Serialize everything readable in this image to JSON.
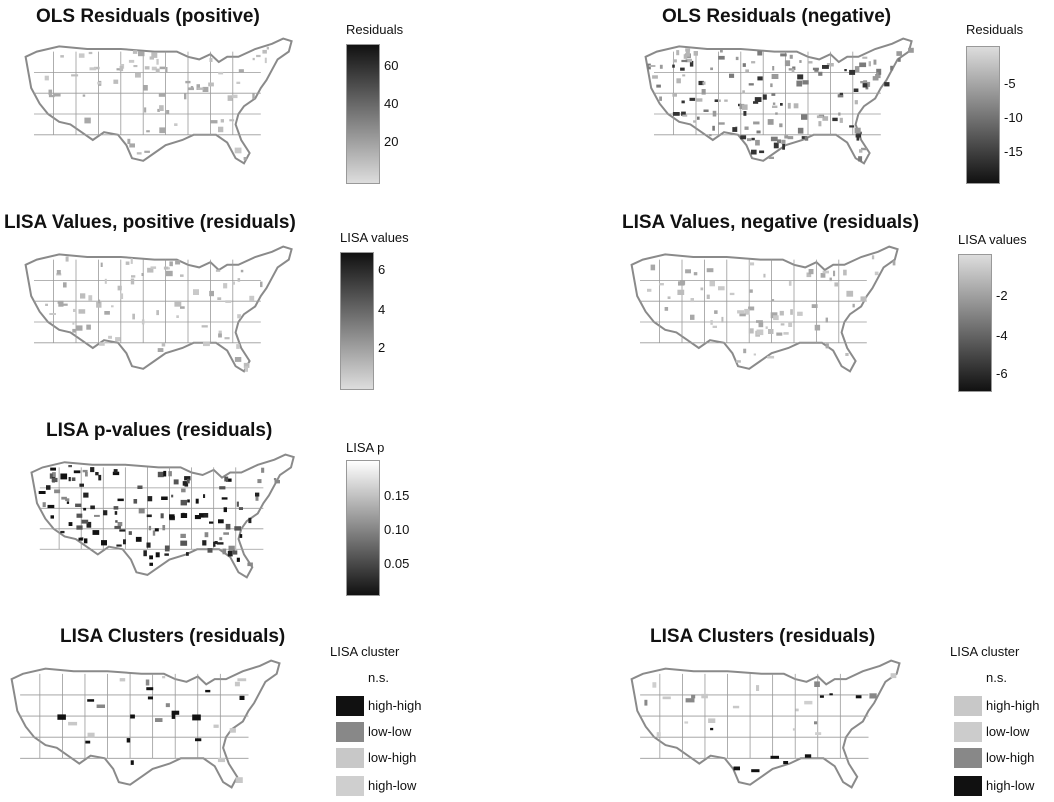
{
  "panels": [
    {
      "id": "ols-pos",
      "title": "OLS Residuals (positive)",
      "legend_title": "Residuals",
      "gradient": [
        "#111111",
        "#dddddd"
      ],
      "ticks": [
        "60",
        "40",
        "20"
      ],
      "pattern": "sparse"
    },
    {
      "id": "ols-neg",
      "title": "OLS Residuals (negative)",
      "legend_title": "Residuals",
      "gradient": [
        "#dddddd",
        "#111111"
      ],
      "ticks": [
        "-5",
        "-10",
        "-15"
      ],
      "pattern": "dense"
    },
    {
      "id": "lisa-pos",
      "title": "LISA Values, positive (residuals)",
      "legend_title": "LISA values",
      "gradient": [
        "#111111",
        "#dddddd"
      ],
      "ticks": [
        "6",
        "4",
        "2"
      ],
      "pattern": "sparse"
    },
    {
      "id": "lisa-neg",
      "title": "LISA Values, negative (residuals)",
      "legend_title": "LISA values",
      "gradient": [
        "#dddddd",
        "#111111"
      ],
      "ticks": [
        "-2",
        "-4",
        "-6"
      ],
      "pattern": "sparse"
    },
    {
      "id": "lisa-p",
      "title": "LISA p-values (residuals)",
      "legend_title": "LISA p",
      "gradient": [
        "#ffffff",
        "#111111"
      ],
      "ticks": [
        "0.15",
        "0.10",
        "0.05"
      ],
      "pattern": "dark"
    }
  ],
  "cluster_panels": [
    {
      "id": "cluster-left",
      "title": "LISA Clusters (residuals)",
      "legend_title": "LISA cluster",
      "items": [
        {
          "label": "n.s.",
          "color": "#ffffff"
        },
        {
          "label": "high-high",
          "color": "#111111"
        },
        {
          "label": "low-low",
          "color": "#888888"
        },
        {
          "label": "low-high",
          "color": "#c8c8c8"
        },
        {
          "label": "high-low",
          "color": "#cfcfcf"
        }
      ]
    },
    {
      "id": "cluster-right",
      "title": "LISA Clusters (residuals)",
      "legend_title": "LISA cluster",
      "items": [
        {
          "label": "n.s.",
          "color": "#ffffff"
        },
        {
          "label": "high-high",
          "color": "#c8c8c8"
        },
        {
          "label": "low-low",
          "color": "#cccccc"
        },
        {
          "label": "low-high",
          "color": "#888888"
        },
        {
          "label": "high-low",
          "color": "#111111"
        }
      ]
    }
  ]
}
